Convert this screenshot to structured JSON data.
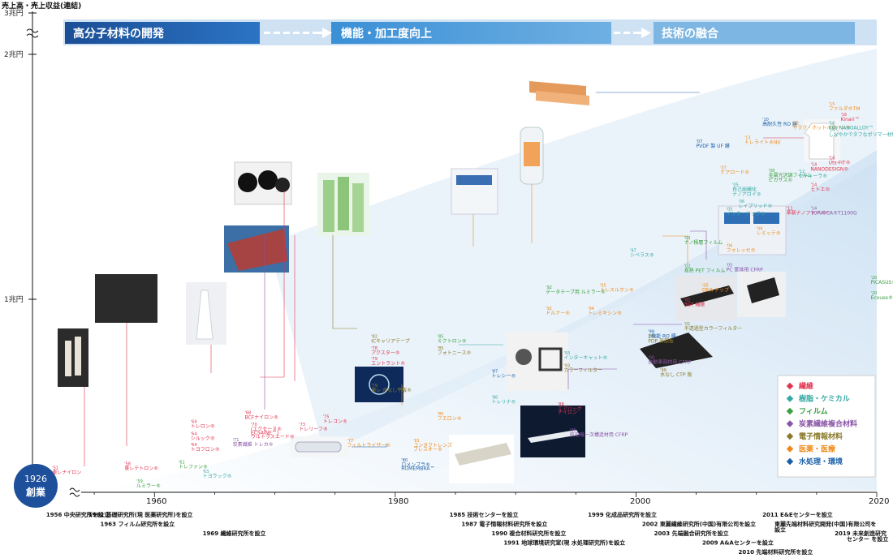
{
  "header": {
    "ylabel": "売上高・売上収益(連結)"
  },
  "y_ticks": [
    "3兆円",
    "2兆円",
    "1兆円"
  ],
  "x_ticks": [
    "1960",
    "1980",
    "2000",
    "2020"
  ],
  "phases": [
    "高分子材料の開発",
    "機能・加工度向上",
    "技術の融合"
  ],
  "founding": {
    "year": "1926",
    "label": "創業"
  },
  "legend": [
    {
      "label": "繊維",
      "color": "#e2334f"
    },
    {
      "label": "樹脂・ケミカル",
      "color": "#33a9a4"
    },
    {
      "label": "フィルム",
      "color": "#3aa040"
    },
    {
      "label": "炭素繊維複合材料",
      "color": "#8a55a6"
    },
    {
      "label": "電子情報材料",
      "color": "#8a7a2a"
    },
    {
      "label": "医薬・医療",
      "color": "#ef8a1a"
    },
    {
      "label": "水処理・環境",
      "color": "#1a5fa8"
    }
  ],
  "chart_data": {
    "type": "timeline",
    "x_range": [
      1950,
      2020
    ],
    "ylabel": "売上高・売上収益(連結)",
    "items": [
      {
        "year": "'51",
        "x": 1951.5,
        "y": 0.095,
        "text": "東レナイロン",
        "cat": 0
      },
      {
        "year": "'59",
        "x": 1958.5,
        "y": 0.025,
        "text": "ルミラー®",
        "cat": 2
      },
      {
        "year": "'58",
        "x": 1957.5,
        "y": 0.115,
        "text": "東レテトロン®",
        "cat": 0
      },
      {
        "year": "'62",
        "x": 1962,
        "y": 0.125,
        "text": "トレファン®",
        "cat": 2
      },
      {
        "year": "'63",
        "x": 1964,
        "y": 0.075,
        "text": "トヨラック®",
        "cat": 1
      },
      {
        "year": "'64",
        "x": 1963,
        "y": 0.335,
        "text": "トレロン®",
        "cat": 0
      },
      {
        "year": "'64",
        "x": 1963,
        "y": 0.27,
        "text": "シルック®",
        "cat": 0
      },
      {
        "year": "'64",
        "x": 1963,
        "y": 0.215,
        "text": "トヨフロン®",
        "cat": 0
      },
      {
        "year": "'68",
        "x": 1967.5,
        "y": 0.38,
        "text": "BCFナイロン®",
        "cat": 0
      },
      {
        "year": "'70",
        "x": 1968,
        "y": 0.32,
        "text": "(エクセーヌ®",
        "cat": 0
      },
      {
        "year": "",
        "x": 1968,
        "y": 0.3,
        "text": "ECSAINE™)",
        "cat": 0
      },
      {
        "year": "",
        "x": 1968,
        "y": 0.28,
        "text": "ウルトラスエード®",
        "cat": 0
      },
      {
        "year": "'71",
        "x": 1966.5,
        "y": 0.24,
        "text": "炭素繊維 トレカ®",
        "cat": 3
      },
      {
        "year": "'73",
        "x": 1972,
        "y": 0.32,
        "text": "トレリーフ®",
        "cat": 0
      },
      {
        "year": "'75",
        "x": 1974,
        "y": 0.36,
        "text": "トレコン®",
        "cat": 0
      },
      {
        "year": "'77",
        "x": 1976,
        "y": 0.235,
        "text": "フィルトライザー®",
        "cat": 5
      },
      {
        "year": "'80",
        "x": 1980.5,
        "y": 0.135,
        "text": "ロメンブラ®",
        "cat": 6
      },
      {
        "year": "",
        "x": 1980.5,
        "y": 0.115,
        "text": "ROMEMBRA™",
        "cat": 6
      },
      {
        "year": "'81",
        "x": 1981.5,
        "y": 0.235,
        "text": "コンタクトレンズ",
        "cat": 5
      },
      {
        "year": "",
        "x": 1981.5,
        "y": 0.215,
        "text": "ブレスオー®",
        "cat": 5
      },
      {
        "year": "'82",
        "x": 1978,
        "y": 0.775,
        "text": "ICキャリアテープ",
        "cat": 4
      },
      {
        "year": "'78",
        "x": 1978,
        "y": 0.715,
        "text": "アクスター®",
        "cat": 0
      },
      {
        "year": "'79",
        "x": 1978,
        "y": 0.66,
        "text": "エントラント®",
        "cat": 0
      },
      {
        "year": "'79",
        "x": 1978,
        "y": 0.52,
        "text": "東レ 水なし平版®",
        "cat": 4
      },
      {
        "year": "'85",
        "x": 1983.5,
        "y": 0.775,
        "text": "ミクトロン®",
        "cat": 2
      },
      {
        "year": "'85",
        "x": 1983.5,
        "y": 0.715,
        "text": "フォトニース®",
        "cat": 4
      },
      {
        "year": "'85",
        "x": 1983.5,
        "y": 0.375,
        "text": "フエロン®",
        "cat": 5
      },
      {
        "year": "'87",
        "x": 1988,
        "y": 0.595,
        "text": "トレシー®",
        "cat": 6
      },
      {
        "year": "'86",
        "x": 1988,
        "y": 0.46,
        "text": "トレリナ®",
        "cat": 1
      },
      {
        "year": "'88",
        "x": 1993.5,
        "y": 0.425,
        "text": "エアバッグ",
        "cat": 0
      },
      {
        "year": "",
        "x": 1993.5,
        "y": 0.405,
        "text": "ナイロン",
        "cat": 0
      },
      {
        "year": "'96",
        "x": 1994.5,
        "y": 0.29,
        "text": "航空機一次構造材用 CFRP",
        "cat": 3
      },
      {
        "year": "'92",
        "x": 1992.5,
        "y": 1.03,
        "text": "データテープ用 ルミラー®",
        "cat": 2
      },
      {
        "year": "'92",
        "x": 1992.5,
        "y": 0.92,
        "text": "ドルナー®",
        "cat": 5
      },
      {
        "year": "'93",
        "x": 1994,
        "y": 0.69,
        "text": "インターキャット®",
        "cat": 1
      },
      {
        "year": "'93",
        "x": 1994,
        "y": 0.625,
        "text": "カラーフィルター",
        "cat": 4
      },
      {
        "year": "'94",
        "x": 1996,
        "y": 0.92,
        "text": "トレミキシン®",
        "cat": 5
      },
      {
        "year": "'95",
        "x": 1997,
        "y": 1.04,
        "text": "トレスルホン®",
        "cat": 5
      },
      {
        "year": "'97",
        "x": 1999.5,
        "y": 1.22,
        "text": "シベラス®",
        "cat": 1
      },
      {
        "year": "'99",
        "x": 2001,
        "y": 0.8,
        "text": "2機能 RO 膜",
        "cat": 6
      },
      {
        "year": "'00",
        "x": 2001,
        "y": 0.775,
        "text": "PDP 背面板",
        "cat": 4
      },
      {
        "year": "'00",
        "x": 2001,
        "y": 0.665,
        "text": "自動車部材用 CFRP",
        "cat": 3
      },
      {
        "year": "'99",
        "x": 2002,
        "y": 0.6,
        "text": "水なし CTP 版",
        "cat": 4
      },
      {
        "year": "'01",
        "x": 2004,
        "y": 0.84,
        "text": "半透過型カラーフィルター",
        "cat": 4
      },
      {
        "year": "'02",
        "x": 2004,
        "y": 1.14,
        "text": "易熱 PET フィルム",
        "cat": 2
      },
      {
        "year": "'02",
        "x": 2004,
        "y": 0.965,
        "text": "3GT 繊維",
        "cat": 0
      },
      {
        "year": "'03",
        "x": 2004,
        "y": 1.285,
        "text": "ナノ積層フィルム",
        "cat": 2
      },
      {
        "year": "'05",
        "x": 2005.5,
        "y": 1.04,
        "text": "DNA チップ",
        "cat": 5
      },
      {
        "year": "'05",
        "x": 2007.5,
        "y": 1.145,
        "text": "PC 筐体用 CFRP",
        "cat": 3
      },
      {
        "year": "'06",
        "x": 2007.5,
        "y": 1.245,
        "text": "フォレッセ®",
        "cat": 5
      },
      {
        "year": "'05",
        "x": 2007.5,
        "y": 1.435,
        "text": "インタードッグ®",
        "cat": 1
      },
      {
        "year": "'05",
        "x": 2008,
        "y": 1.56,
        "text": "自己組織化",
        "cat": 1
      },
      {
        "year": "",
        "x": 2008,
        "y": 1.535,
        "text": "ナノアロイ®",
        "cat": 1
      },
      {
        "year": "'07",
        "x": 2007,
        "y": 1.65,
        "text": "ケアロード®",
        "cat": 5
      },
      {
        "year": "'07",
        "x": 2005,
        "y": 1.785,
        "text": "PVDF 製 UF 膜",
        "cat": 6
      },
      {
        "year": "'06",
        "x": 2008.5,
        "y": 1.475,
        "text": "レイブリッド®",
        "cat": 1
      },
      {
        "year": "'09",
        "x": 2010,
        "y": 1.335,
        "text": "レミッテ®",
        "cat": 5
      },
      {
        "year": "'08",
        "x": 2011,
        "y": 1.635,
        "text": "金属光沢調フィルム",
        "cat": 2
      },
      {
        "year": "",
        "x": 2011,
        "y": 1.61,
        "text": "ピカサス®",
        "cat": 2
      },
      {
        "year": "'12",
        "x": 2013.5,
        "y": 1.63,
        "text": "セティーラ®",
        "cat": 1
      },
      {
        "year": "'11",
        "x": 2012.5,
        "y": 1.44,
        "text": "革新ナノファイバー",
        "cat": 0
      },
      {
        "year": "'10",
        "x": 2010.5,
        "y": 1.9,
        "text": "高耐久性 RO 膜",
        "cat": 6
      },
      {
        "year": "'13",
        "x": 2009,
        "y": 1.805,
        "text": "トレライト®NV",
        "cat": 5
      },
      {
        "year": "'13",
        "x": 2013,
        "y": 1.88,
        "text": "サラク・ホットバルーン®",
        "cat": 5
      },
      {
        "year": "'15",
        "x": 2016,
        "y": 1.98,
        "text": "ファルダ®TM",
        "cat": 5
      },
      {
        "year": "'16",
        "x": 2016,
        "y": 1.88,
        "text": "PPS NANOALLOY™",
        "cat": 1
      },
      {
        "year": "'16",
        "x": 2016,
        "y": 1.845,
        "text": "しなやかでタフなポリマー材料",
        "cat": 1
      },
      {
        "year": "'16",
        "x": 2017,
        "y": 1.925,
        "text": "Kinari™",
        "cat": 0
      },
      {
        "year": "'16",
        "x": 2016,
        "y": 1.7,
        "text": "Uts-FIT®",
        "cat": 0
      },
      {
        "year": "'14",
        "x": 2014.5,
        "y": 1.665,
        "text": "NANODESIGN®",
        "cat": 0
      },
      {
        "year": "'14",
        "x": 2014.5,
        "y": 1.56,
        "text": "ヒトエ®",
        "cat": 0
      },
      {
        "year": "'14",
        "x": 2014.5,
        "y": 1.44,
        "text": "TORAYCA®T1100G",
        "cat": 3
      },
      {
        "year": "'20",
        "x": 2019.5,
        "y": 1.08,
        "text": "PICASUS®VT",
        "cat": 2
      },
      {
        "year": "'20",
        "x": 2019.5,
        "y": 1.0,
        "text": "Ecouse®",
        "cat": 2
      }
    ],
    "events": [
      {
        "text": "1956 中央研究所を設立",
        "x": 1951,
        "row": 0
      },
      {
        "text": "1962 基礎研究所(現 医薬研究所)を設立",
        "x": 1954.5,
        "row": 0
      },
      {
        "text": "1963 フィルム研究所を設立",
        "x": 1955.5,
        "row": 1
      },
      {
        "text": "1969 繊維研究所を設立",
        "x": 1964,
        "row": 2
      },
      {
        "text": "1985 技術センターを設立",
        "x": 1984.5,
        "row": 0
      },
      {
        "text": "1987 電子情報材料研究所を設立",
        "x": 1985.5,
        "row": 1
      },
      {
        "text": "1990 複合材料研究所を設立",
        "x": 1988,
        "row": 2
      },
      {
        "text": "1991 地球環境研究室(現 水処理研究所)を設立",
        "x": 1989,
        "row": 3
      },
      {
        "text": "1999 化成品研究所を設立",
        "x": 1996,
        "row": 0
      },
      {
        "text": "2002 東麗繊維研究所(中国)有限公司を設立",
        "x": 2000.5,
        "row": 1
      },
      {
        "text": "2003 先端融合研究所を設立",
        "x": 2001.5,
        "row": 2
      },
      {
        "text": "2009 A&Aセンターを設立",
        "x": 2005.5,
        "row": 3
      },
      {
        "text": "2010 先端材料研究所を設立",
        "x": 2008.5,
        "row": 4
      },
      {
        "text": "2011 E&Eセンターを設立",
        "x": 2010.5,
        "row": 0
      },
      {
        "text": "東麗先端材料研究開発(中国)有限公司を",
        "x": 2011.5,
        "row": 1
      },
      {
        "text": "設立",
        "x": 2011.5,
        "row": 1.6
      },
      {
        "text": "2019 未来創造研究",
        "x": 2016.5,
        "row": 2
      },
      {
        "text": "センター を設立",
        "x": 2017.5,
        "row": 2.6
      }
    ]
  }
}
